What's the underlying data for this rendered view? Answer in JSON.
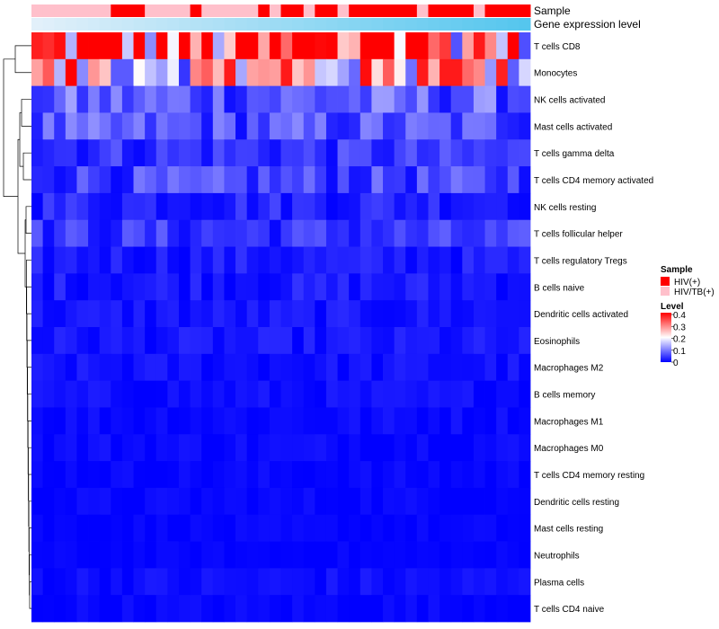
{
  "chart_data": {
    "type": "heatmap",
    "annotation_tracks": [
      {
        "name": "Sample",
        "label": "Sample"
      },
      {
        "name": "Gene expression level",
        "label": "Gene expression level"
      }
    ],
    "rows": [
      "T cells CD8",
      "Monocytes",
      "NK cells activated",
      "Mast cells activated",
      "T cells gamma delta",
      "T cells CD4 memory activated",
      "NK cells resting",
      "T cells follicular helper",
      "T cells regulatory  Tregs",
      "B cells naive",
      "Dendritic cells activated",
      "Eosinophils",
      "Macrophages M2",
      "B cells memory",
      "Macrophages M1",
      "Macrophages M0",
      "T cells CD4 memory resting",
      "Dendritic cells resting",
      "Mast cells resting",
      "Neutrophils",
      "Plasma cells",
      "T cells CD4 naive"
    ],
    "n_columns": 44,
    "sample_groups": [
      "P",
      "P",
      "P",
      "P",
      "P",
      "P",
      "P",
      "H",
      "H",
      "H",
      "P",
      "P",
      "P",
      "P",
      "H",
      "P",
      "P",
      "P",
      "P",
      "P",
      "H",
      "P",
      "H",
      "H",
      "P",
      "H",
      "H",
      "P",
      "H",
      "H",
      "H",
      "H",
      "H",
      "H",
      "P",
      "H",
      "H",
      "H",
      "H",
      "P",
      "H",
      "H",
      "H",
      "H"
    ],
    "row_mean_levels": [
      0.3,
      0.22,
      0.07,
      0.06,
      0.04,
      0.05,
      0.03,
      0.04,
      0.02,
      0.02,
      0.015,
      0.015,
      0.012,
      0.01,
      0.008,
      0.008,
      0.005,
      0.005,
      0.003,
      0.002,
      0.01,
      0.005
    ],
    "cluster_dendrogram": true,
    "legend": {
      "sample": {
        "title": "Sample",
        "entries": [
          {
            "code": "H",
            "label": "HIV(+)",
            "color": "#ff0000"
          },
          {
            "code": "P",
            "label": "HIV/TB(+)",
            "color": "#ffc0cb"
          }
        ]
      },
      "level": {
        "title": "Level",
        "ticks": [
          "0.4",
          "0.3",
          "0.2",
          "0.1",
          "0"
        ],
        "range": [
          0,
          0.4
        ],
        "colors": {
          "low": "#0000ff",
          "mid": "#ffffff",
          "high": "#ff0000"
        }
      }
    }
  }
}
